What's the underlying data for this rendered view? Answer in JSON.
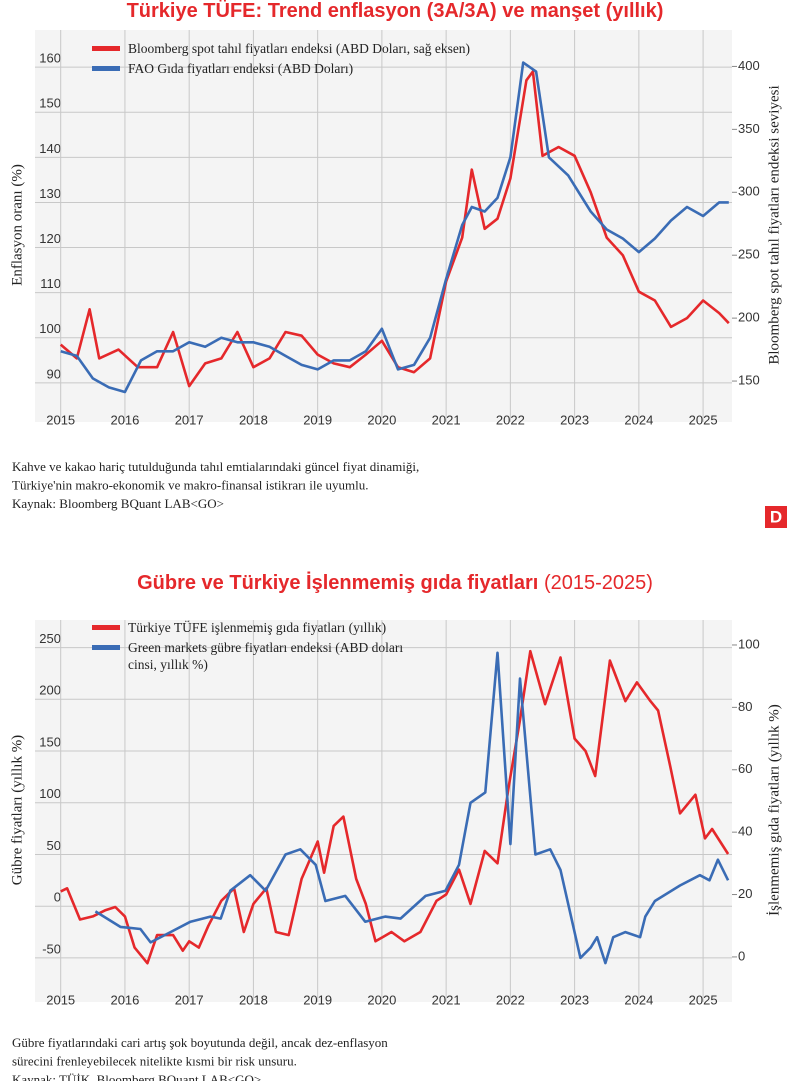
{
  "chart_data": [
    {
      "type": "line",
      "title": "Türkiye TÜFE: Trend enflasyon (3A/3A) ve manşet (yıllık)",
      "y_label": "Enflasyon oranı (%)",
      "y2_label": "Bloomberg spot tahıl fiyatları endeksi seviyesi",
      "xlim": [
        2014.6,
        2025.45
      ],
      "xticks": [
        2015,
        2016,
        2017,
        2018,
        2019,
        2020,
        2021,
        2022,
        2023,
        2024,
        2025
      ],
      "ylim": [
        84,
        166
      ],
      "yticks": [
        90,
        100,
        110,
        120,
        130,
        140,
        150,
        160
      ],
      "y2lim": [
        127,
        421
      ],
      "y2ticks": [
        150,
        200,
        250,
        300,
        350,
        400
      ],
      "grid": true,
      "series": [
        {
          "name": "Bloomberg spot tahıl fiyatları endeksi (ABD Doları, sağ eksen)",
          "color": "#e5282b",
          "axis": "y2",
          "x": [
            2015.0,
            2015.25,
            2015.45,
            2015.6,
            2015.9,
            2016.2,
            2016.5,
            2016.75,
            2017.0,
            2017.25,
            2017.5,
            2017.75,
            2018.0,
            2018.25,
            2018.5,
            2018.75,
            2019.0,
            2019.25,
            2019.5,
            2019.75,
            2020.0,
            2020.25,
            2020.5,
            2020.75,
            2021.0,
            2021.25,
            2021.4,
            2021.6,
            2021.8,
            2022.0,
            2022.25,
            2022.35,
            2022.5,
            2022.75,
            2023.0,
            2023.25,
            2023.5,
            2023.75,
            2024.0,
            2024.25,
            2024.5,
            2024.75,
            2025.0,
            2025.25,
            2025.4
          ],
          "values": [
            179,
            168,
            207,
            168,
            175,
            161,
            161,
            189,
            146,
            164,
            168,
            189,
            161,
            168,
            189,
            186,
            171,
            164,
            161,
            171,
            182,
            161,
            157,
            168,
            229,
            264,
            318,
            271,
            279,
            311,
            389,
            396,
            329,
            336,
            329,
            300,
            264,
            250,
            221,
            214,
            193,
            200,
            214,
            204,
            196
          ]
        },
        {
          "name": "FAO Gıda fiyatları endeksi (ABD Doları)",
          "color": "#3a6cb5",
          "x": [
            2015.0,
            2015.25,
            2015.5,
            2015.75,
            2016.0,
            2016.25,
            2016.5,
            2016.75,
            2017.0,
            2017.25,
            2017.5,
            2017.75,
            2018.0,
            2018.25,
            2018.5,
            2018.75,
            2019.0,
            2019.25,
            2019.5,
            2019.75,
            2020.0,
            2020.25,
            2020.5,
            2020.75,
            2021.0,
            2021.25,
            2021.4,
            2021.6,
            2021.8,
            2022.0,
            2022.2,
            2022.4,
            2022.6,
            2022.9,
            2023.25,
            2023.5,
            2023.75,
            2024.0,
            2024.25,
            2024.5,
            2024.75,
            2025.0,
            2025.25,
            2025.4
          ],
          "values": [
            97,
            96,
            91,
            89,
            88,
            95,
            97,
            97,
            99,
            98,
            100,
            99,
            99,
            98,
            96,
            94,
            93,
            95,
            95,
            97,
            102,
            93,
            94,
            100,
            113,
            125,
            129,
            128,
            131,
            140,
            161,
            159,
            140,
            136,
            128,
            124,
            122,
            119,
            122,
            126,
            129,
            127,
            130,
            130
          ]
        }
      ],
      "notes": [
        "Kahve ve kakao hariç tutulduğunda tahıl emtialarındaki güncel fiyat dinamiği,",
        "Türkiye'nin makro-ekonomik ve makro-finansal istikrarı ile uyumlu.",
        "Kaynak: Bloomberg BQuant LAB<GO>"
      ],
      "logo": "D"
    },
    {
      "type": "line",
      "title": "Gübre ve Türkiye İşlenmemiş gıda fiyatları",
      "subtitle": "(2015-2025)",
      "y_label": "Gübre fiyatları (yıllık %)",
      "y2_label": "İşlenmemiş gıda fiyatları (yıllık %)",
      "xlim": [
        2014.6,
        2025.45
      ],
      "xticks": [
        2015,
        2016,
        2017,
        2018,
        2019,
        2020,
        2021,
        2022,
        2023,
        2024,
        2025
      ],
      "ylim": [
        -81,
        267
      ],
      "yticks": [
        -50,
        0,
        50,
        100,
        150,
        200,
        250
      ],
      "y2lim": [
        -10.6,
        104.8
      ],
      "y2ticks": [
        0,
        20,
        40,
        60,
        80,
        100
      ],
      "grid": true,
      "series": [
        {
          "name": "Türkiye TÜFE işlenmemiş gıda fiyatları (yıllık)",
          "color": "#e5282b",
          "axis": "y2",
          "x": [
            2015.0,
            2015.1,
            2015.3,
            2015.5,
            2015.7,
            2015.85,
            2016.0,
            2016.15,
            2016.35,
            2016.5,
            2016.75,
            2016.9,
            2017.0,
            2017.15,
            2017.3,
            2017.5,
            2017.7,
            2017.85,
            2018.0,
            2018.2,
            2018.35,
            2018.55,
            2018.75,
            2019.0,
            2019.1,
            2019.25,
            2019.4,
            2019.6,
            2019.75,
            2019.9,
            2020.15,
            2020.35,
            2020.6,
            2020.85,
            2021.0,
            2021.2,
            2021.38,
            2021.6,
            2021.8,
            2021.97,
            2022.15,
            2022.31,
            2022.54,
            2022.78,
            2023.0,
            2023.17,
            2023.32,
            2023.55,
            2023.79,
            2023.97,
            2024.18,
            2024.3,
            2024.49,
            2024.64,
            2024.88,
            2025.03,
            2025.14,
            2025.39
          ],
          "values": [
            21,
            22,
            12,
            13,
            15,
            16,
            13,
            3,
            -2,
            7,
            7,
            2,
            5,
            3,
            10,
            18,
            22,
            8,
            17,
            22,
            8,
            7,
            25,
            37,
            27,
            42,
            45,
            25,
            17,
            5,
            8,
            5,
            8,
            18,
            20,
            28,
            17,
            34,
            30,
            54,
            76,
            98,
            81,
            96,
            70,
            66,
            58,
            95,
            82,
            88,
            82,
            79,
            61,
            46,
            52,
            38,
            41,
            33
          ]
        },
        {
          "name": "Green markets gübre fiyatları endeksi (ABD doları cinsi, yıllık %)",
          "color": "#3a6cb5",
          "x": [
            2015.54,
            2015.93,
            2016.24,
            2016.4,
            2016.71,
            2017.02,
            2017.33,
            2017.49,
            2017.64,
            2017.95,
            2018.19,
            2018.5,
            2018.73,
            2018.97,
            2019.12,
            2019.43,
            2019.74,
            2020.05,
            2020.29,
            2020.68,
            2020.99,
            2021.2,
            2021.38,
            2021.61,
            2021.8,
            2022.0,
            2022.15,
            2022.39,
            2022.62,
            2022.78,
            2023.09,
            2023.25,
            2023.35,
            2023.48,
            2023.6,
            2023.79,
            2024.02,
            2024.1,
            2024.25,
            2024.64,
            2024.95,
            2025.1,
            2025.23,
            2025.39
          ],
          "values": [
            -5,
            -20,
            -22,
            -35,
            -25,
            -15,
            -10,
            -12,
            15,
            30,
            15,
            50,
            55,
            40,
            5,
            10,
            -15,
            -10,
            -12,
            10,
            15,
            40,
            100,
            110,
            245,
            60,
            220,
            50,
            55,
            35,
            -50,
            -40,
            -30,
            -55,
            -30,
            -25,
            -30,
            -10,
            5,
            20,
            30,
            25,
            45,
            25
          ]
        }
      ],
      "notes": [
        "Gübre fiyatlarındaki cari artış şok boyutunda değil, ancak dez-enflasyon",
        "sürecini frenleyebilecek nitelikte kısmi bir risk unsuru.",
        "Kaynak: TÜİK, Bloomberg BQuant LAB<GO>"
      ]
    }
  ]
}
